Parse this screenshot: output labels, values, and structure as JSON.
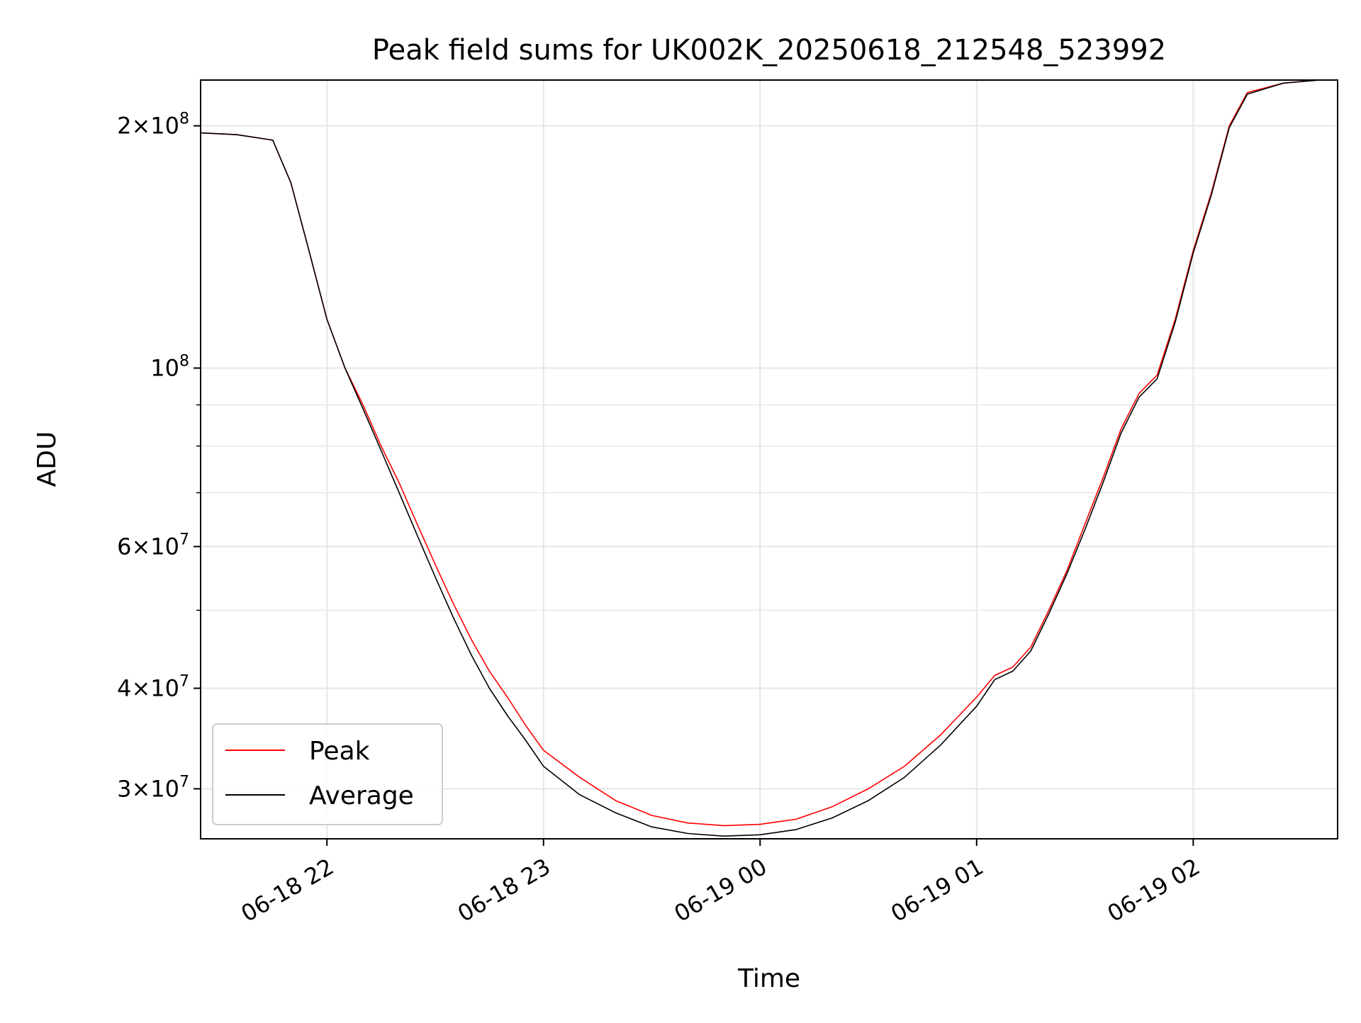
{
  "chart_data": {
    "type": "line",
    "title": "Peak field sums for UK002K_20250618_212548_523992",
    "xlabel": "Time",
    "ylabel": "ADU",
    "y_scale": "log",
    "grid": true,
    "legend_position": "lower-left",
    "xlim": [
      "2025-06-18 21:25",
      "2025-06-19 02:40"
    ],
    "ylim": [
      26000000,
      228000000
    ],
    "x_ticks": [
      {
        "value": "2025-06-18 22:00",
        "label": "06-18 22"
      },
      {
        "value": "2025-06-18 23:00",
        "label": "06-18 23"
      },
      {
        "value": "2025-06-19 00:00",
        "label": "06-19 00"
      },
      {
        "value": "2025-06-19 01:00",
        "label": "06-19 01"
      },
      {
        "value": "2025-06-19 02:00",
        "label": "06-19 02"
      }
    ],
    "y_ticks_major": [
      {
        "value": 30000000,
        "mantissa": "3",
        "base": "10",
        "exp": "7"
      },
      {
        "value": 40000000,
        "mantissa": "4",
        "base": "10",
        "exp": "7"
      },
      {
        "value": 60000000,
        "mantissa": "6",
        "base": "10",
        "exp": "7"
      },
      {
        "value": 100000000,
        "mantissa": "",
        "base": "10",
        "exp": "8"
      },
      {
        "value": 200000000,
        "mantissa": "2",
        "base": "10",
        "exp": "8"
      }
    ],
    "y_ticks_minor": [
      50000000,
      70000000,
      80000000,
      90000000
    ],
    "series": [
      {
        "name": "Peak",
        "color": "#ff0000",
        "points": [
          [
            "2025-06-18 21:25",
            196000000
          ],
          [
            "2025-06-18 21:35",
            195000000
          ],
          [
            "2025-06-18 21:45",
            192000000
          ],
          [
            "2025-06-18 21:50",
            170000000
          ],
          [
            "2025-06-18 21:55",
            140000000
          ],
          [
            "2025-06-18 22:00",
            115000000
          ],
          [
            "2025-06-18 22:05",
            100000000
          ],
          [
            "2025-06-18 22:10",
            90000000
          ],
          [
            "2025-06-18 22:15",
            80000000
          ],
          [
            "2025-06-18 22:20",
            72000000
          ],
          [
            "2025-06-18 22:25",
            64000000
          ],
          [
            "2025-06-18 22:30",
            57000000
          ],
          [
            "2025-06-18 22:35",
            51000000
          ],
          [
            "2025-06-18 22:40",
            46000000
          ],
          [
            "2025-06-18 22:45",
            42000000
          ],
          [
            "2025-06-18 22:50",
            39000000
          ],
          [
            "2025-06-18 22:55",
            36000000
          ],
          [
            "2025-06-18 23:00",
            33500000
          ],
          [
            "2025-06-18 23:10",
            31000000
          ],
          [
            "2025-06-18 23:20",
            29000000
          ],
          [
            "2025-06-18 23:30",
            27800000
          ],
          [
            "2025-06-18 23:40",
            27200000
          ],
          [
            "2025-06-18 23:50",
            27000000
          ],
          [
            "2025-06-19 00:00",
            27100000
          ],
          [
            "2025-06-19 00:10",
            27500000
          ],
          [
            "2025-06-19 00:20",
            28500000
          ],
          [
            "2025-06-19 00:30",
            30000000
          ],
          [
            "2025-06-19 00:40",
            32000000
          ],
          [
            "2025-06-19 00:50",
            35000000
          ],
          [
            "2025-06-19 01:00",
            39000000
          ],
          [
            "2025-06-19 01:05",
            41500000
          ],
          [
            "2025-06-19 01:10",
            42500000
          ],
          [
            "2025-06-19 01:15",
            45000000
          ],
          [
            "2025-06-19 01:20",
            50000000
          ],
          [
            "2025-06-19 01:25",
            56000000
          ],
          [
            "2025-06-19 01:30",
            64000000
          ],
          [
            "2025-06-19 01:35",
            73000000
          ],
          [
            "2025-06-19 01:40",
            84000000
          ],
          [
            "2025-06-19 01:45",
            93000000
          ],
          [
            "2025-06-19 01:50",
            98000000
          ],
          [
            "2025-06-19 01:55",
            115000000
          ],
          [
            "2025-06-19 02:00",
            140000000
          ],
          [
            "2025-06-19 02:05",
            165000000
          ],
          [
            "2025-06-19 02:10",
            200000000
          ],
          [
            "2025-06-19 02:15",
            220000000
          ],
          [
            "2025-06-19 02:25",
            226000000
          ],
          [
            "2025-06-19 02:35",
            228000000
          ]
        ]
      },
      {
        "name": "Average",
        "color": "#000000",
        "points": [
          [
            "2025-06-18 21:25",
            196000000
          ],
          [
            "2025-06-18 21:35",
            195000000
          ],
          [
            "2025-06-18 21:45",
            192000000
          ],
          [
            "2025-06-18 21:50",
            170000000
          ],
          [
            "2025-06-18 21:55",
            140000000
          ],
          [
            "2025-06-18 22:00",
            115000000
          ],
          [
            "2025-06-18 22:05",
            100000000
          ],
          [
            "2025-06-18 22:10",
            89000000
          ],
          [
            "2025-06-18 22:15",
            79000000
          ],
          [
            "2025-06-18 22:20",
            70000000
          ],
          [
            "2025-06-18 22:25",
            62000000
          ],
          [
            "2025-06-18 22:30",
            55000000
          ],
          [
            "2025-06-18 22:35",
            49000000
          ],
          [
            "2025-06-18 22:40",
            44000000
          ],
          [
            "2025-06-18 22:45",
            40000000
          ],
          [
            "2025-06-18 22:50",
            37000000
          ],
          [
            "2025-06-18 22:55",
            34500000
          ],
          [
            "2025-06-18 23:00",
            32000000
          ],
          [
            "2025-06-18 23:10",
            29500000
          ],
          [
            "2025-06-18 23:20",
            28000000
          ],
          [
            "2025-06-18 23:30",
            26900000
          ],
          [
            "2025-06-18 23:40",
            26400000
          ],
          [
            "2025-06-18 23:50",
            26200000
          ],
          [
            "2025-06-19 00:00",
            26300000
          ],
          [
            "2025-06-19 00:10",
            26700000
          ],
          [
            "2025-06-19 00:20",
            27600000
          ],
          [
            "2025-06-19 00:30",
            29000000
          ],
          [
            "2025-06-19 00:40",
            31000000
          ],
          [
            "2025-06-19 00:50",
            34000000
          ],
          [
            "2025-06-19 01:00",
            38000000
          ],
          [
            "2025-06-19 01:05",
            41000000
          ],
          [
            "2025-06-19 01:10",
            42000000
          ],
          [
            "2025-06-19 01:15",
            44500000
          ],
          [
            "2025-06-19 01:20",
            49500000
          ],
          [
            "2025-06-19 01:25",
            55500000
          ],
          [
            "2025-06-19 01:30",
            63000000
          ],
          [
            "2025-06-19 01:35",
            72000000
          ],
          [
            "2025-06-19 01:40",
            83000000
          ],
          [
            "2025-06-19 01:45",
            92000000
          ],
          [
            "2025-06-19 01:50",
            97000000
          ],
          [
            "2025-06-19 01:55",
            114000000
          ],
          [
            "2025-06-19 02:00",
            139000000
          ],
          [
            "2025-06-19 02:05",
            164000000
          ],
          [
            "2025-06-19 02:10",
            199000000
          ],
          [
            "2025-06-19 02:15",
            219000000
          ],
          [
            "2025-06-19 02:25",
            226000000
          ],
          [
            "2025-06-19 02:35",
            228000000
          ]
        ]
      }
    ]
  }
}
